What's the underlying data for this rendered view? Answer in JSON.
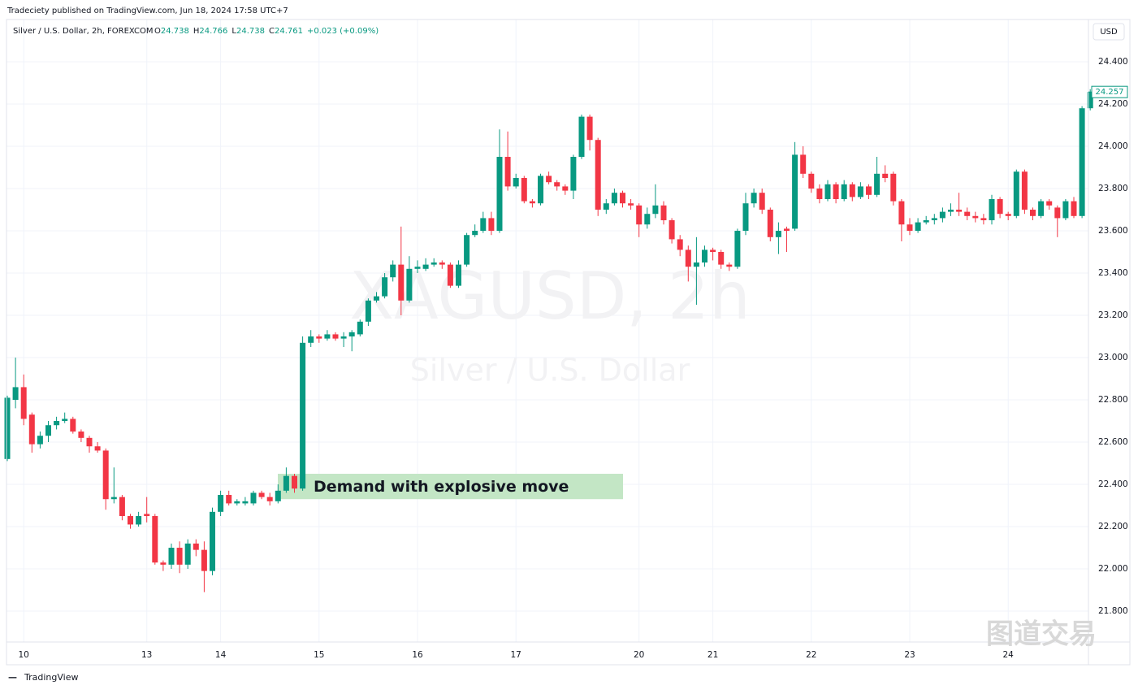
{
  "header": {
    "publisher": "Tradeciety published on TradingView.com, Jun 18, 2024 17:58 UTC+7",
    "symbol": "Silver / U.S. Dollar, 2h, FOREXCOM",
    "ohlc": [
      "O",
      "24.738",
      "H",
      "24.766",
      "L",
      "24.738",
      "C",
      "24.761",
      "+0.023 (+0.09%)"
    ],
    "currency": "USD",
    "footer": "TradingView",
    "corner_watermark": "图道交易"
  },
  "chart_data": {
    "type": "candlestick",
    "watermark": "XAGUSD, 2h",
    "watermark_subtitle": "Silver / U.S. Dollar",
    "annotation": {
      "text": "Demand with explosive move",
      "top": 22.45,
      "bottom": 22.33,
      "color": "#c3e6c5"
    },
    "up_color": "#089981",
    "down_color": "#f23645",
    "grid": true,
    "x": [
      null,
      null,
      "10",
      null,
      null,
      null,
      null,
      null,
      null,
      null,
      null,
      null,
      null,
      null,
      null,
      null,
      null,
      "13",
      null,
      null,
      null,
      null,
      null,
      null,
      null,
      null,
      "14",
      null,
      null,
      null,
      null,
      null,
      null,
      null,
      null,
      null,
      null,
      null,
      "15",
      null,
      null,
      null,
      null,
      null,
      null,
      null,
      null,
      null,
      null,
      null,
      "16",
      null,
      null,
      null,
      null,
      null,
      null,
      null,
      null,
      null,
      null,
      null,
      "17",
      null,
      null,
      null,
      null,
      null,
      null,
      null,
      null,
      null,
      null,
      null,
      null,
      null,
      null,
      "20",
      null,
      null,
      null,
      null,
      null,
      null,
      null,
      null,
      "21",
      null,
      null,
      null,
      null,
      null,
      null,
      null,
      null,
      null,
      null,
      null,
      "22",
      null,
      null,
      null,
      null,
      null,
      null,
      null,
      null,
      null,
      null,
      null,
      "23",
      null,
      null,
      null,
      null,
      null,
      null,
      null,
      null,
      null,
      null,
      null,
      "24",
      null,
      null,
      null,
      null,
      null,
      null,
      null,
      null,
      null,
      null
    ],
    "open": [
      22.52,
      22.8,
      22.86,
      22.73,
      22.59,
      22.63,
      22.68,
      22.7,
      22.71,
      22.65,
      22.62,
      22.58,
      22.56,
      22.33,
      22.34,
      22.25,
      22.21,
      22.26,
      22.25,
      22.03,
      22.02,
      22.1,
      22.02,
      22.12,
      22.09,
      21.99,
      22.27,
      22.35,
      22.31,
      22.31,
      22.31,
      22.36,
      22.34,
      22.32,
      22.37,
      22.44,
      22.38,
      23.07,
      23.1,
      23.09,
      23.11,
      23.09,
      23.1,
      23.11,
      23.17,
      23.27,
      23.29,
      23.38,
      23.44,
      23.27,
      23.42,
      23.42,
      23.44,
      23.45,
      23.44,
      23.34,
      23.44,
      23.58,
      23.6,
      23.66,
      23.6,
      23.95,
      23.81,
      23.85,
      23.74,
      23.73,
      23.86,
      23.83,
      23.81,
      23.79,
      23.95,
      24.14,
      24.03,
      23.7,
      23.73,
      23.78,
      23.73,
      23.72,
      23.63,
      23.68,
      23.72,
      23.65,
      23.56,
      23.51,
      23.43,
      23.45,
      23.51,
      23.5,
      23.44,
      23.43,
      23.6,
      23.73,
      23.78,
      23.7,
      23.57,
      23.61,
      23.61,
      23.96,
      23.87,
      23.8,
      23.75,
      23.82,
      23.75,
      23.82,
      23.76,
      23.81,
      23.77,
      23.87,
      23.87,
      23.74,
      23.63,
      23.6,
      23.64,
      23.65,
      23.66,
      23.69,
      23.7,
      23.69,
      23.67,
      23.66,
      23.65,
      23.75,
      23.68,
      23.67,
      23.88,
      23.7,
      23.67,
      23.74,
      23.71,
      23.66,
      23.74,
      23.67,
      24.18
    ],
    "high": [
      22.82,
      23.0,
      22.92,
      22.74,
      22.65,
      22.7,
      22.72,
      22.74,
      22.72,
      22.66,
      22.63,
      22.6,
      22.57,
      22.48,
      22.35,
      22.26,
      22.27,
      22.34,
      22.26,
      22.04,
      22.12,
      22.13,
      22.14,
      22.14,
      22.13,
      22.29,
      22.37,
      22.37,
      22.33,
      22.34,
      22.37,
      22.37,
      22.36,
      22.4,
      22.48,
      22.45,
      23.1,
      23.13,
      23.11,
      23.13,
      23.12,
      23.12,
      23.13,
      23.18,
      23.28,
      23.31,
      23.4,
      23.46,
      23.62,
      23.48,
      23.46,
      23.47,
      23.47,
      23.46,
      23.45,
      23.46,
      23.59,
      23.63,
      23.69,
      23.69,
      24.08,
      24.07,
      23.87,
      23.86,
      23.75,
      23.87,
      23.88,
      23.84,
      23.82,
      23.96,
      24.15,
      24.15,
      24.04,
      23.75,
      23.8,
      23.79,
      23.75,
      23.73,
      23.71,
      23.82,
      23.74,
      23.66,
      23.58,
      23.53,
      23.57,
      23.53,
      23.52,
      23.51,
      23.45,
      23.61,
      23.78,
      23.8,
      23.8,
      23.71,
      23.64,
      23.62,
      24.02,
      24.0,
      23.88,
      23.82,
      23.84,
      23.83,
      23.84,
      23.83,
      23.83,
      23.82,
      23.95,
      23.91,
      23.88,
      23.75,
      23.66,
      23.66,
      23.67,
      23.68,
      23.71,
      23.73,
      23.78,
      23.71,
      23.69,
      23.68,
      23.77,
      23.76,
      23.69,
      23.89,
      23.89,
      23.71,
      23.75,
      23.75,
      23.72,
      23.75,
      23.76,
      24.19,
      24.27
    ],
    "low": [
      22.51,
      22.76,
      22.68,
      22.55,
      22.57,
      22.6,
      22.66,
      22.69,
      22.64,
      22.6,
      22.55,
      22.55,
      22.28,
      22.31,
      22.23,
      22.19,
      22.2,
      22.22,
      22.02,
      21.99,
      22.0,
      21.98,
      22.0,
      22.06,
      21.89,
      21.97,
      22.25,
      22.3,
      22.3,
      22.3,
      22.3,
      22.33,
      22.3,
      22.31,
      22.36,
      22.36,
      22.37,
      23.05,
      23.07,
      23.08,
      23.08,
      23.05,
      23.03,
      23.1,
      23.15,
      23.26,
      23.28,
      23.36,
      23.2,
      23.26,
      23.4,
      23.41,
      23.43,
      23.42,
      23.33,
      23.33,
      23.43,
      23.57,
      23.59,
      23.58,
      23.59,
      23.79,
      23.8,
      23.73,
      23.71,
      23.72,
      23.82,
      23.79,
      23.77,
      23.75,
      23.94,
      23.98,
      23.67,
      23.68,
      23.72,
      23.71,
      23.7,
      23.57,
      23.61,
      23.66,
      23.63,
      23.54,
      23.48,
      23.36,
      23.25,
      23.43,
      23.46,
      23.42,
      23.41,
      23.42,
      23.58,
      23.71,
      23.68,
      23.55,
      23.49,
      23.5,
      23.6,
      23.85,
      23.78,
      23.73,
      23.74,
      23.73,
      23.74,
      23.74,
      23.75,
      23.75,
      23.76,
      23.83,
      23.72,
      23.55,
      23.58,
      23.59,
      23.63,
      23.63,
      23.64,
      23.67,
      23.67,
      23.65,
      23.64,
      23.63,
      23.63,
      23.66,
      23.65,
      23.66,
      23.68,
      23.65,
      23.66,
      23.7,
      23.57,
      23.65,
      23.66,
      23.66,
      24.17
    ],
    "close": [
      22.81,
      22.86,
      22.71,
      22.59,
      22.63,
      22.68,
      22.7,
      22.71,
      22.65,
      22.62,
      22.58,
      22.56,
      22.33,
      22.34,
      22.25,
      22.21,
      22.25,
      22.25,
      22.03,
      22.02,
      22.1,
      22.02,
      22.12,
      22.09,
      21.99,
      22.27,
      22.35,
      22.31,
      22.32,
      22.32,
      22.36,
      22.34,
      22.32,
      22.37,
      22.44,
      22.38,
      23.07,
      23.1,
      23.09,
      23.11,
      23.09,
      23.1,
      23.12,
      23.17,
      23.27,
      23.29,
      23.38,
      23.44,
      23.27,
      23.42,
      23.43,
      23.44,
      23.45,
      23.44,
      23.34,
      23.44,
      23.58,
      23.6,
      23.66,
      23.6,
      23.95,
      23.81,
      23.85,
      23.74,
      23.73,
      23.86,
      23.83,
      23.81,
      23.79,
      23.95,
      24.14,
      24.03,
      23.7,
      23.73,
      23.78,
      23.73,
      23.72,
      23.63,
      23.68,
      23.72,
      23.65,
      23.56,
      23.51,
      23.43,
      23.45,
      23.51,
      23.5,
      23.44,
      23.43,
      23.6,
      23.73,
      23.78,
      23.7,
      23.57,
      23.6,
      23.6,
      23.96,
      23.87,
      23.8,
      23.75,
      23.82,
      23.75,
      23.82,
      23.76,
      23.81,
      23.77,
      23.87,
      23.85,
      23.74,
      23.63,
      23.6,
      23.64,
      23.65,
      23.66,
      23.69,
      23.7,
      23.69,
      23.67,
      23.66,
      23.65,
      23.75,
      23.68,
      23.67,
      23.88,
      23.7,
      23.67,
      23.74,
      23.72,
      23.66,
      23.74,
      23.67,
      24.18,
      24.257
    ],
    "ylim": [
      21.654,
      24.6
    ],
    "yticks": [
      {
        "value": 21.8,
        "label": "21.800"
      },
      {
        "value": 22.0,
        "label": "22.000"
      },
      {
        "value": 22.2,
        "label": "22.200"
      },
      {
        "value": 22.4,
        "label": "22.400"
      },
      {
        "value": 22.6,
        "label": "22.600"
      },
      {
        "value": 22.8,
        "label": "22.800"
      },
      {
        "value": 23.0,
        "label": "23.000"
      },
      {
        "value": 23.2,
        "label": "23.200"
      },
      {
        "value": 23.4,
        "label": "23.400"
      },
      {
        "value": 23.6,
        "label": "23.600"
      },
      {
        "value": 23.8,
        "label": "23.800"
      },
      {
        "value": 24.0,
        "label": "24.000"
      },
      {
        "value": 24.2,
        "label": "24.200"
      },
      {
        "value": 24.4,
        "label": "24.400"
      }
    ]
  }
}
